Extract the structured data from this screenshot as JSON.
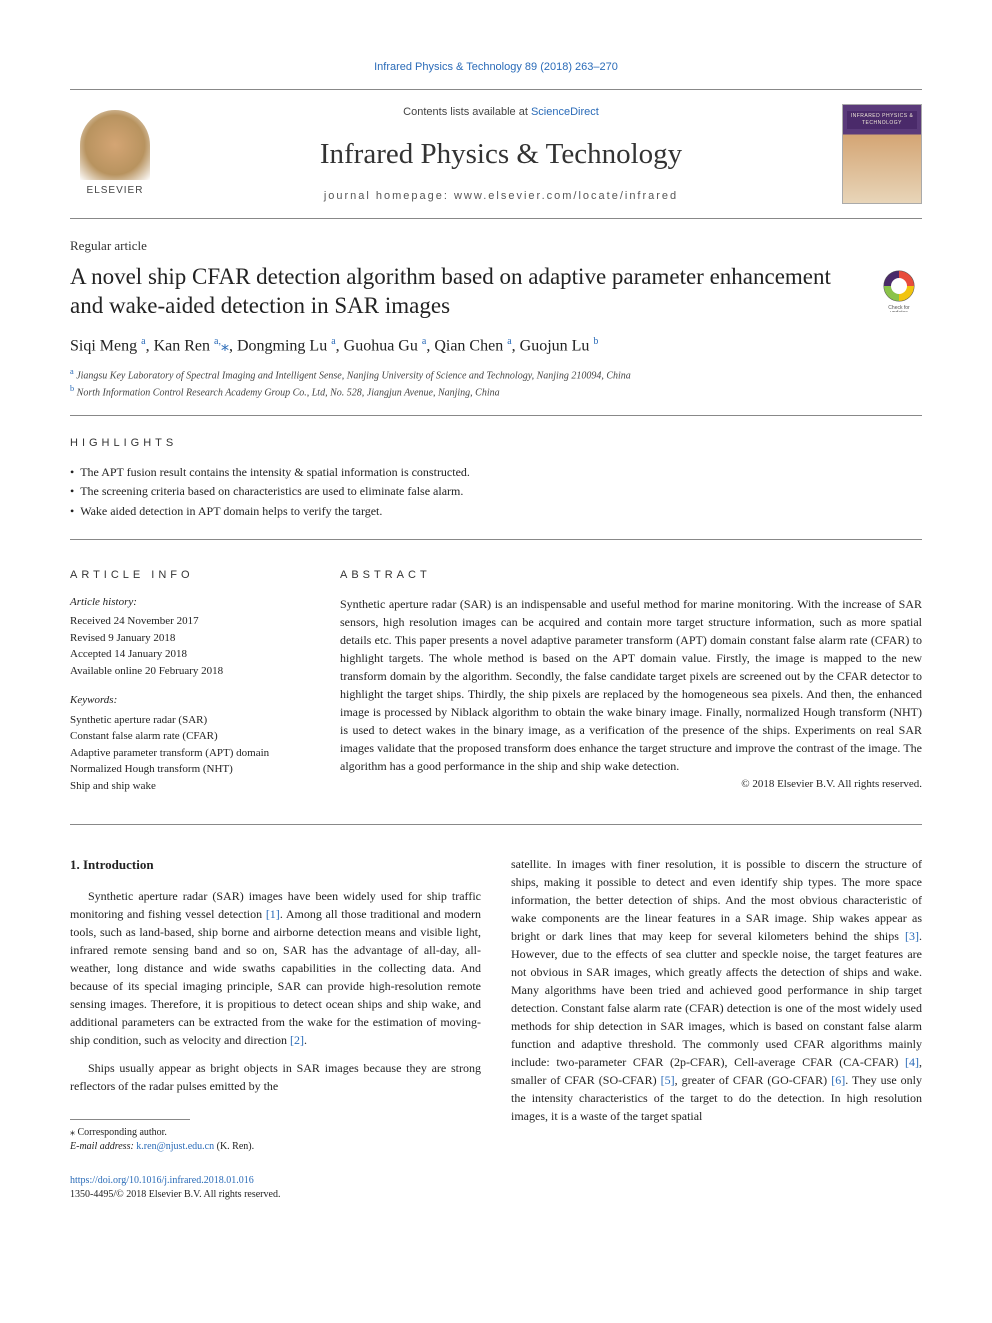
{
  "header": {
    "citation_link": "Infrared Physics & Technology 89 (2018) 263–270",
    "contents_prefix": "Contents lists available at ",
    "contents_link": "ScienceDirect",
    "journal_title": "Infrared Physics & Technology",
    "homepage_label": "journal homepage: www.elsevier.com/locate/infrared",
    "publisher": "ELSEVIER",
    "cover_text": "INFRARED PHYSICS & TECHNOLOGY"
  },
  "article": {
    "type": "Regular article",
    "title": "A novel ship CFAR detection algorithm based on adaptive parameter enhancement and wake-aided detection in SAR images",
    "authors_html": "Siqi Meng <sup>a</sup>, Kan Ren <sup>a,</sup><span class='ast'>⁎</span>, Dongming Lu <sup>a</sup>, Guohua Gu <sup>a</sup>, Qian Chen <sup>a</sup>, Guojun Lu <sup>b</sup>",
    "affiliations": [
      {
        "sup": "a",
        "text": "Jiangsu Key Laboratory of Spectral Imaging and Intelligent Sense, Nanjing University of Science and Technology, Nanjing 210094, China"
      },
      {
        "sup": "b",
        "text": "North Information Control Research Academy Group Co., Ltd, No. 528, Jiangjun Avenue, Nanjing, China"
      }
    ],
    "check_updates_label": "Check for updates"
  },
  "highlights": {
    "label": "HIGHLIGHTS",
    "items": [
      "The APT fusion result contains the intensity & spatial information is constructed.",
      "The screening criteria based on characteristics are used to eliminate false alarm.",
      "Wake aided detection in APT domain helps to verify the target."
    ]
  },
  "article_info": {
    "label": "ARTICLE INFO",
    "history_label": "Article history:",
    "history": [
      "Received 24 November 2017",
      "Revised 9 January 2018",
      "Accepted 14 January 2018",
      "Available online 20 February 2018"
    ],
    "keywords_label": "Keywords:",
    "keywords": [
      "Synthetic aperture radar (SAR)",
      "Constant false alarm rate (CFAR)",
      "Adaptive parameter transform (APT) domain",
      "Normalized Hough transform (NHT)",
      "Ship and ship wake"
    ]
  },
  "abstract": {
    "label": "ABSTRACT",
    "text": "Synthetic aperture radar (SAR) is an indispensable and useful method for marine monitoring. With the increase of SAR sensors, high resolution images can be acquired and contain more target structure information, such as more spatial details etc. This paper presents a novel adaptive parameter transform (APT) domain constant false alarm rate (CFAR) to highlight targets. The whole method is based on the APT domain value. Firstly, the image is mapped to the new transform domain by the algorithm. Secondly, the false candidate target pixels are screened out by the CFAR detector to highlight the target ships. Thirdly, the ship pixels are replaced by the homogeneous sea pixels. And then, the enhanced image is processed by Niblack algorithm to obtain the wake binary image. Finally, normalized Hough transform (NHT) is used to detect wakes in the binary image, as a verification of the presence of the ships. Experiments on real SAR images validate that the proposed transform does enhance the target structure and improve the contrast of the image. The algorithm has a good performance in the ship and ship wake detection.",
    "copyright": "© 2018 Elsevier B.V. All rights reserved."
  },
  "body": {
    "intro_heading": "1. Introduction",
    "col1_p1": "Synthetic aperture radar (SAR) images have been widely used for ship traffic monitoring and fishing vessel detection [1]. Among all those traditional and modern tools, such as land-based, ship borne and airborne detection means and visible light, infrared remote sensing band and so on, SAR has the advantage of all-day, all-weather, long distance and wide swaths capabilities in the collecting data. And because of its special imaging principle, SAR can provide high-resolution remote sensing images. Therefore, it is propitious to detect ocean ships and ship wake, and additional parameters can be extracted from the wake for the estimation of moving-ship condition, such as velocity and direction [2].",
    "col1_p2": "Ships usually appear as bright objects in SAR images because they are strong reflectors of the radar pulses emitted by the",
    "col2_p1": "satellite. In images with finer resolution, it is possible to discern the structure of ships, making it possible to detect and even identify ship types. The more space information, the better detection of ships. And the most obvious characteristic of wake components are the linear features in a SAR image. Ship wakes appear as bright or dark lines that may keep for several kilometers behind the ships [3]. However, due to the effects of sea clutter and speckle noise, the target features are not obvious in SAR images, which greatly affects the detection of ships and wake. Many algorithms have been tried and achieved good performance in ship target detection. Constant false alarm rate (CFAR) detection is one of the most widely used methods for ship detection in SAR images, which is based on constant false alarm function and adaptive threshold. The commonly used CFAR algorithms mainly include: two-parameter CFAR (2p-CFAR), Cell-average CFAR (CA-CFAR) [4], smaller of CFAR (SO-CFAR) [5], greater of CFAR (GO-CFAR) [6]. They use only the intensity characteristics of the target to do the detection. In high resolution images, it is a waste of the target spatial",
    "refs": {
      "r1": "[1]",
      "r2": "[2]",
      "r3": "[3]",
      "r4": "[4]",
      "r5": "[5]",
      "r6": "[6]"
    }
  },
  "footnote": {
    "corresponding": "⁎ Corresponding author.",
    "email_label": "E-mail address: ",
    "email": "k.ren@njust.edu.cn",
    "email_suffix": " (K. Ren)."
  },
  "footer": {
    "doi": "https://doi.org/10.1016/j.infrared.2018.01.016",
    "issn_line": "1350-4495/© 2018 Elsevier B.V. All rights reserved."
  },
  "colors": {
    "link": "#2a6bb8",
    "text": "#222222",
    "rule": "#888888"
  }
}
